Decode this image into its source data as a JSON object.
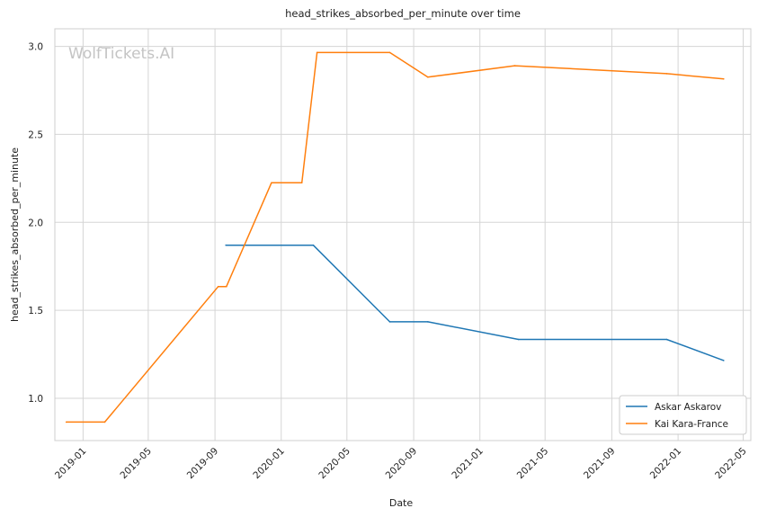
{
  "watermark": "WolfTickets.AI",
  "chart_data": {
    "type": "line",
    "title": "head_strikes_absorbed_per_minute over time",
    "xlabel": "Date",
    "ylabel": "head_strikes_absorbed_per_minute",
    "x_axis": "date",
    "xlim": [
      "2018-11-10",
      "2022-05-15"
    ],
    "ylim": [
      0.76,
      3.1
    ],
    "x_ticks": [
      "2019-01",
      "2019-05",
      "2019-09",
      "2020-01",
      "2020-05",
      "2020-09",
      "2021-01",
      "2021-05",
      "2021-09",
      "2022-01",
      "2022-05"
    ],
    "y_ticks": [
      "1.0",
      "1.5",
      "2.0",
      "2.5",
      "3.0"
    ],
    "grid": true,
    "legend_position": "bottom-right",
    "series": [
      {
        "name": "Askar Askarov",
        "color": "#1f77b4",
        "points": [
          [
            "2019-09-21",
            1.87
          ],
          [
            "2020-02-29",
            1.87
          ],
          [
            "2020-07-19",
            1.435
          ],
          [
            "2020-09-27",
            1.435
          ],
          [
            "2021-03-13",
            1.335
          ],
          [
            "2021-12-11",
            1.335
          ],
          [
            "2022-03-26",
            1.215
          ]
        ]
      },
      {
        "name": "Kai Kara-France",
        "color": "#ff7f0e",
        "points": [
          [
            "2018-12-01",
            0.865
          ],
          [
            "2019-02-10",
            0.865
          ],
          [
            "2019-09-07",
            1.635
          ],
          [
            "2019-09-22",
            1.635
          ],
          [
            "2019-12-14",
            2.225
          ],
          [
            "2020-02-08",
            2.225
          ],
          [
            "2020-03-07",
            2.965
          ],
          [
            "2020-07-19",
            2.965
          ],
          [
            "2020-09-27",
            2.825
          ],
          [
            "2021-03-06",
            2.89
          ],
          [
            "2021-12-11",
            2.845
          ],
          [
            "2022-03-26",
            2.815
          ]
        ]
      }
    ]
  }
}
